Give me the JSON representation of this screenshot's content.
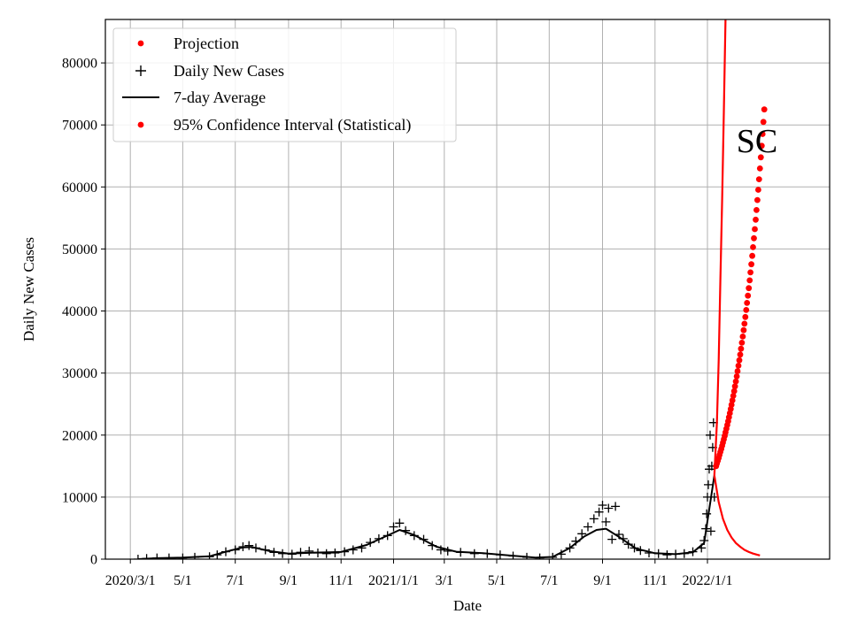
{
  "chart_data": {
    "type": "scatter",
    "title": "",
    "xlabel": "Date",
    "ylabel": "Daily New Cases",
    "annotation": "SC",
    "ylim": [
      0,
      87000
    ],
    "xlim": [
      "2020-02-01",
      "2022-05-23"
    ],
    "grid": true,
    "legend_position": "top-left",
    "x_ticks": [
      {
        "date": "2020-03-01",
        "label": "2020/3/1"
      },
      {
        "date": "2020-05-01",
        "label": "5/1"
      },
      {
        "date": "2020-07-01",
        "label": "7/1"
      },
      {
        "date": "2020-09-01",
        "label": "9/1"
      },
      {
        "date": "2020-11-01",
        "label": "11/1"
      },
      {
        "date": "2021-01-01",
        "label": "2021/1/1"
      },
      {
        "date": "2021-03-01",
        "label": "3/1"
      },
      {
        "date": "2021-05-01",
        "label": "5/1"
      },
      {
        "date": "2021-07-01",
        "label": "7/1"
      },
      {
        "date": "2021-09-01",
        "label": "9/1"
      },
      {
        "date": "2021-11-01",
        "label": "11/1"
      },
      {
        "date": "2022-01-01",
        "label": "2022/1/1"
      }
    ],
    "y_ticks": [
      0,
      10000,
      20000,
      30000,
      40000,
      50000,
      60000,
      70000,
      80000
    ],
    "legend": [
      {
        "name": "Projection",
        "marker": "dot",
        "color": "#ff0000"
      },
      {
        "name": "Daily New Cases",
        "marker": "plus",
        "color": "#000000"
      },
      {
        "name": "7-day Average",
        "marker": "line",
        "color": "#000000"
      },
      {
        "name": "95% Confidence Interval (Statistical)",
        "marker": "dot",
        "color": "#ff0000"
      }
    ],
    "series": [
      {
        "name": "Daily New Cases",
        "kind": "plus",
        "color": "#000000",
        "points": [
          [
            "2020-03-10",
            0
          ],
          [
            "2020-03-20",
            100
          ],
          [
            "2020-04-01",
            200
          ],
          [
            "2020-04-15",
            200
          ],
          [
            "2020-05-01",
            200
          ],
          [
            "2020-05-15",
            300
          ],
          [
            "2020-06-01",
            400
          ],
          [
            "2020-06-10",
            700
          ],
          [
            "2020-06-20",
            1200
          ],
          [
            "2020-07-01",
            1500
          ],
          [
            "2020-07-10",
            2000
          ],
          [
            "2020-07-17",
            2200
          ],
          [
            "2020-07-25",
            1800
          ],
          [
            "2020-08-05",
            1500
          ],
          [
            "2020-08-15",
            1100
          ],
          [
            "2020-08-25",
            900
          ],
          [
            "2020-09-05",
            800
          ],
          [
            "2020-09-15",
            1100
          ],
          [
            "2020-09-25",
            1300
          ],
          [
            "2020-10-05",
            1000
          ],
          [
            "2020-10-15",
            900
          ],
          [
            "2020-10-25",
            1000
          ],
          [
            "2020-11-05",
            1200
          ],
          [
            "2020-11-15",
            1500
          ],
          [
            "2020-11-25",
            1800
          ],
          [
            "2020-12-05",
            2700
          ],
          [
            "2020-12-15",
            3300
          ],
          [
            "2020-12-25",
            3800
          ],
          [
            "2021-01-01",
            5200
          ],
          [
            "2021-01-08",
            5800
          ],
          [
            "2021-01-15",
            4600
          ],
          [
            "2021-01-25",
            3800
          ],
          [
            "2021-02-05",
            3200
          ],
          [
            "2021-02-15",
            2200
          ],
          [
            "2021-02-25",
            1500
          ],
          [
            "2021-03-05",
            1300
          ],
          [
            "2021-03-20",
            1100
          ],
          [
            "2021-04-05",
            900
          ],
          [
            "2021-04-20",
            900
          ],
          [
            "2021-05-05",
            700
          ],
          [
            "2021-05-20",
            500
          ],
          [
            "2021-06-05",
            300
          ],
          [
            "2021-06-20",
            200
          ],
          [
            "2021-07-05",
            300
          ],
          [
            "2021-07-15",
            800
          ],
          [
            "2021-07-25",
            1800
          ],
          [
            "2021-08-01",
            2900
          ],
          [
            "2021-08-08",
            4100
          ],
          [
            "2021-08-15",
            5200
          ],
          [
            "2021-08-22",
            6500
          ],
          [
            "2021-08-28",
            7600
          ],
          [
            "2021-09-01",
            8700
          ],
          [
            "2021-09-05",
            6000
          ],
          [
            "2021-09-08",
            8200
          ],
          [
            "2021-09-12",
            3200
          ],
          [
            "2021-09-16",
            8500
          ],
          [
            "2021-09-20",
            4000
          ],
          [
            "2021-09-25",
            3300
          ],
          [
            "2021-10-01",
            2400
          ],
          [
            "2021-10-08",
            1800
          ],
          [
            "2021-10-15",
            1400
          ],
          [
            "2021-10-25",
            1000
          ],
          [
            "2021-11-05",
            900
          ],
          [
            "2021-11-15",
            700
          ],
          [
            "2021-11-25",
            800
          ],
          [
            "2021-12-05",
            900
          ],
          [
            "2021-12-15",
            1200
          ],
          [
            "2021-12-25",
            1800
          ],
          [
            "2021-12-28",
            3000
          ],
          [
            "2021-12-30",
            4900
          ],
          [
            "2021-12-31",
            7300
          ],
          [
            "2022-01-01",
            10000
          ],
          [
            "2022-01-02",
            12000
          ],
          [
            "2022-01-03",
            14500
          ],
          [
            "2022-01-04",
            20000
          ],
          [
            "2022-01-05",
            4500
          ],
          [
            "2022-01-06",
            15000
          ],
          [
            "2022-01-07",
            18000
          ],
          [
            "2022-01-08",
            22000
          ],
          [
            "2022-01-09",
            10000
          ]
        ]
      },
      {
        "name": "7-day Average",
        "kind": "line",
        "color": "#000000",
        "points": [
          [
            "2020-03-10",
            0
          ],
          [
            "2020-04-01",
            150
          ],
          [
            "2020-05-01",
            250
          ],
          [
            "2020-06-01",
            450
          ],
          [
            "2020-06-20",
            1200
          ],
          [
            "2020-07-10",
            1900
          ],
          [
            "2020-07-20",
            1950
          ],
          [
            "2020-08-10",
            1300
          ],
          [
            "2020-09-01",
            900
          ],
          [
            "2020-10-01",
            1050
          ],
          [
            "2020-11-01",
            1150
          ],
          [
            "2020-12-01",
            2300
          ],
          [
            "2020-12-20",
            3500
          ],
          [
            "2021-01-08",
            4700
          ],
          [
            "2021-01-25",
            3900
          ],
          [
            "2021-02-20",
            2000
          ],
          [
            "2021-03-15",
            1200
          ],
          [
            "2021-04-15",
            950
          ],
          [
            "2021-05-15",
            600
          ],
          [
            "2021-06-15",
            250
          ],
          [
            "2021-07-05",
            350
          ],
          [
            "2021-07-25",
            1800
          ],
          [
            "2021-08-10",
            3600
          ],
          [
            "2021-08-25",
            4700
          ],
          [
            "2021-09-05",
            4900
          ],
          [
            "2021-09-20",
            3600
          ],
          [
            "2021-10-10",
            1700
          ],
          [
            "2021-11-01",
            950
          ],
          [
            "2021-11-25",
            800
          ],
          [
            "2021-12-15",
            1100
          ],
          [
            "2021-12-28",
            2600
          ],
          [
            "2022-01-03",
            8000
          ],
          [
            "2022-01-09",
            13500
          ]
        ]
      },
      {
        "name": "95% Confidence Interval (Statistical)",
        "kind": "line",
        "color": "#ff0000",
        "points": [
          [
            "2022-01-09",
            13500
          ],
          [
            "2022-01-14",
            9200
          ],
          [
            "2022-01-19",
            6500
          ],
          [
            "2022-01-24",
            4700
          ],
          [
            "2022-01-29",
            3500
          ],
          [
            "2022-02-03",
            2600
          ],
          [
            "2022-02-08",
            2000
          ],
          [
            "2022-02-13",
            1500
          ],
          [
            "2022-02-18",
            1150
          ],
          [
            "2022-02-23",
            900
          ],
          [
            "2022-02-28",
            700
          ],
          [
            "2022-03-03",
            600
          ]
        ]
      },
      {
        "name": "95% Confidence Interval (Statistical) upper",
        "kind": "line",
        "color": "#ff0000",
        "points": [
          [
            "2022-01-09",
            13500
          ],
          [
            "2022-01-12",
            22000
          ],
          [
            "2022-01-14",
            32000
          ],
          [
            "2022-01-16",
            45000
          ],
          [
            "2022-01-18",
            58000
          ],
          [
            "2022-01-20",
            72000
          ],
          [
            "2022-01-22",
            87000
          ]
        ]
      },
      {
        "name": "Projection",
        "kind": "dots",
        "color": "#ff0000",
        "start": "2022-01-11",
        "days": 57,
        "y0": 15000,
        "y1": 72500
      }
    ]
  }
}
